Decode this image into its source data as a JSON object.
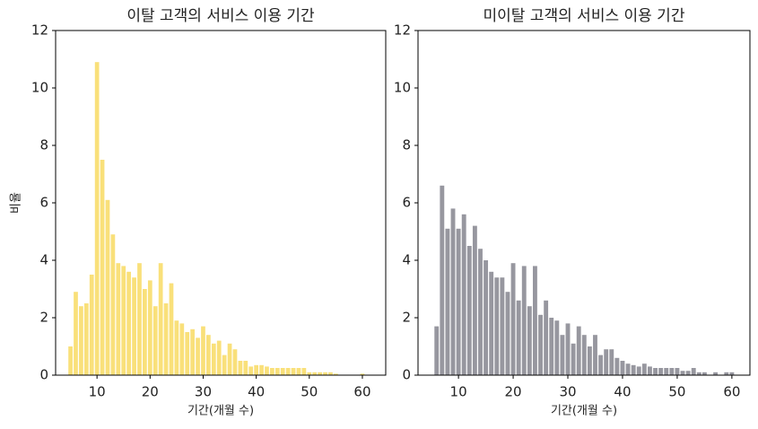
{
  "chart_data": [
    {
      "type": "bar",
      "title": "이탈 고객의 서비스 이용 기간",
      "x_label": "기간(개월 수)",
      "y_label": "비율",
      "color": "#f9e07a",
      "x": [
        5,
        6,
        7,
        8,
        9,
        10,
        11,
        12,
        13,
        14,
        15,
        16,
        17,
        18,
        19,
        20,
        21,
        22,
        23,
        24,
        25,
        26,
        27,
        28,
        29,
        30,
        31,
        32,
        33,
        34,
        35,
        36,
        37,
        38,
        39,
        40,
        41,
        42,
        43,
        44,
        45,
        46,
        47,
        48,
        49,
        50,
        51,
        52,
        53,
        54,
        55,
        56,
        57,
        58,
        59,
        60
      ],
      "values": [
        1.0,
        2.9,
        2.4,
        2.5,
        3.5,
        10.9,
        7.5,
        6.1,
        4.9,
        3.9,
        3.8,
        3.6,
        3.4,
        3.9,
        3.0,
        3.3,
        2.4,
        3.9,
        2.5,
        3.2,
        1.9,
        1.8,
        1.5,
        1.6,
        1.3,
        1.7,
        1.4,
        1.1,
        1.2,
        0.7,
        1.1,
        0.9,
        0.5,
        0.5,
        0.3,
        0.35,
        0.35,
        0.3,
        0.25,
        0.25,
        0.25,
        0.25,
        0.25,
        0.25,
        0.25,
        0.1,
        0.1,
        0.1,
        0.1,
        0.1,
        0.05,
        0,
        0,
        0,
        0,
        0.05
      ],
      "xlim": [
        2.2,
        64.4
      ],
      "xticks": [
        10,
        20,
        30,
        40,
        50,
        60
      ],
      "ylim": [
        0,
        12
      ],
      "yticks": [
        0,
        2,
        4,
        6,
        8,
        10,
        12
      ]
    },
    {
      "type": "bar",
      "title": "미이탈 고객의 서비스 이용 기간",
      "x_label": "기간(개월 수)",
      "color": "#97979f",
      "x": [
        6,
        7,
        8,
        9,
        10,
        11,
        12,
        13,
        14,
        15,
        16,
        17,
        18,
        19,
        20,
        21,
        22,
        23,
        24,
        25,
        26,
        27,
        28,
        29,
        30,
        31,
        32,
        33,
        34,
        35,
        36,
        37,
        38,
        39,
        40,
        41,
        42,
        43,
        44,
        45,
        46,
        47,
        48,
        49,
        50,
        51,
        52,
        53,
        54,
        55,
        56,
        57,
        58,
        59,
        60
      ],
      "values": [
        1.7,
        6.6,
        5.1,
        5.8,
        5.1,
        5.6,
        4.5,
        5.2,
        4.4,
        4.0,
        3.6,
        3.4,
        3.4,
        2.9,
        3.9,
        2.6,
        3.8,
        2.4,
        3.8,
        2.1,
        2.6,
        2.0,
        1.9,
        1.4,
        1.8,
        1.1,
        1.7,
        1.4,
        1.0,
        1.4,
        0.7,
        0.9,
        0.9,
        0.6,
        0.5,
        0.4,
        0.35,
        0.3,
        0.4,
        0.3,
        0.25,
        0.25,
        0.25,
        0.25,
        0.25,
        0.15,
        0.15,
        0.25,
        0.1,
        0.1,
        0,
        0.1,
        0,
        0.1,
        0.1
      ],
      "xlim": [
        2.6,
        63.3
      ],
      "xticks": [
        10,
        20,
        30,
        40,
        50,
        60
      ],
      "ylim": [
        0,
        12
      ],
      "yticks": [
        0,
        2,
        4,
        6,
        8,
        10,
        12
      ]
    }
  ]
}
